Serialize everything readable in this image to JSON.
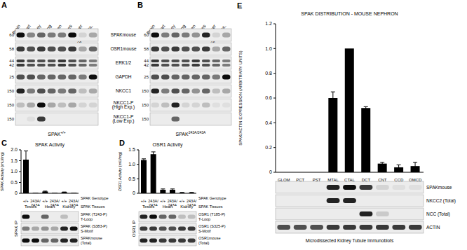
{
  "blots": {
    "row_labels": [
      [
        "SPAKmouse"
      ],
      [
        "OSR1mouse"
      ],
      [
        "ERK1/2"
      ],
      [
        "GAPDH"
      ],
      [
        "NKCC1"
      ],
      [
        "NKCC1-P",
        "(High Exp.)"
      ],
      [
        "NKCC1-P",
        "(Low Exp.)"
      ]
    ],
    "panels": [
      {
        "letter": "A",
        "genotype": {
          "text": "SPAK",
          "sup": "+/+"
        },
        "lanes": [
          "Brain",
          "Heart",
          "Kidney",
          "Lung",
          "Spleen",
          "Testes",
          "Liver",
          "Skel. Musc."
        ],
        "rows": [
          {
            "mw": [
              60
            ],
            "intensity": [
              1,
              0.45,
              0.6,
              0.5,
              0.5,
              1,
              0.1,
              0.3
            ]
          },
          {
            "mw": [
              58
            ],
            "intensity": [
              0.8,
              0.7,
              0.8,
              0.7,
              0.7,
              0.8,
              0.3,
              0.6
            ]
          },
          {
            "mw": [
              44,
              42
            ],
            "intensity": [
              0.8,
              0.7,
              0.7,
              0.7,
              0.8,
              0.7,
              0.6,
              0.5
            ]
          },
          {
            "mw": [
              25
            ],
            "intensity": [
              0.7,
              0.7,
              0.6,
              0.6,
              0.6,
              0.6,
              0.5,
              1
            ]
          },
          {
            "mw": [
              150
            ],
            "intensity": [
              0.9,
              0.5,
              0.7,
              0.6,
              0.5,
              0.6,
              0.2,
              0.3
            ]
          },
          {
            "mw": [
              150
            ],
            "intensity": [
              0.2,
              0.3,
              1,
              0.3,
              0.2,
              0.3,
              0.1,
              0.1
            ]
          },
          {
            "mw": [
              150
            ],
            "intensity": [
              0,
              0.05,
              0.8,
              0,
              0,
              0,
              0,
              0
            ]
          }
        ]
      },
      {
        "letter": "B",
        "genotype": {
          "text": "SPAK",
          "sup": "243A/243A"
        },
        "lanes": [
          "Brain",
          "Heart",
          "Kidney",
          "Lung",
          "Spleen",
          "Testes",
          "Liver",
          "Skel. Musc."
        ],
        "rows": [
          {
            "mw": [
              60
            ],
            "intensity": [
              1,
              0.5,
              0.6,
              0.5,
              0.4,
              0.9,
              0.1,
              0.3
            ]
          },
          {
            "mw": [
              58
            ],
            "intensity": [
              0.8,
              0.7,
              0.8,
              0.7,
              0.7,
              0.8,
              0.3,
              0.6
            ]
          },
          {
            "mw": [
              44,
              42
            ],
            "intensity": [
              0.8,
              0.7,
              0.7,
              0.7,
              0.8,
              0.7,
              0.6,
              0.5
            ]
          },
          {
            "mw": [
              25
            ],
            "intensity": [
              0.7,
              0.7,
              0.6,
              0.6,
              0.6,
              0.6,
              0.5,
              1
            ]
          },
          {
            "mw": [
              150
            ],
            "intensity": [
              0.9,
              0.5,
              0.7,
              0.6,
              0.4,
              0.6,
              0.2,
              0.3
            ]
          },
          {
            "mw": [
              150
            ],
            "intensity": [
              0.1,
              0.2,
              0.9,
              0.1,
              0.1,
              0.2,
              0.05,
              0.05
            ]
          },
          {
            "mw": [
              150
            ],
            "intensity": [
              0,
              0,
              0.6,
              0,
              0,
              0,
              0,
              0
            ]
          }
        ]
      }
    ]
  },
  "chart_data": [
    {
      "letter": "C",
      "type": "bar",
      "title": "SPAK Activity",
      "y_label": "SPAK Activity (mU/mg)",
      "categories": [
        "+/+",
        "243A/243A",
        "+/+",
        "243A/243A",
        "+/+",
        "243A/243A"
      ],
      "category_label": "SPAK Genotype",
      "groups": [
        "Testes",
        "Heart",
        "Kidney"
      ],
      "group_label": "SPAK Tissues",
      "values": [
        1.55,
        0.02,
        0.08,
        0.02,
        0.05,
        0.02
      ],
      "errors": [
        0.4,
        0,
        0.02,
        0,
        0.01,
        0
      ],
      "color": "#000000",
      "ylim": [
        0,
        2
      ],
      "yticks": [
        0,
        0.5,
        {
          "value": 1,
          "label": "1.0"
        },
        1.5,
        {
          "value": 2,
          "label": "2.0"
        }
      ],
      "grid": false,
      "blot": {
        "side_label": "SPAK IP",
        "rows": [
          {
            "label": [
              "SPAK (T243-P)",
              "T-Loop"
            ],
            "intensity": [
              1,
              0,
              0.6,
              0,
              0.2,
              0
            ]
          },
          {
            "label": [
              "SPAK (S383-P)",
              "S-Motif"
            ],
            "intensity": [
              0.5,
              0.3,
              0.4,
              0.3,
              0.9,
              1
            ]
          },
          {
            "label": [
              "SPAKmouse",
              "(Total)"
            ],
            "intensity": [
              1,
              1,
              0.6,
              0.6,
              0.9,
              0.9
            ]
          }
        ]
      }
    },
    {
      "letter": "D",
      "type": "bar",
      "title": "OSR1 Activity",
      "y_label": "OSR1 Activity (mU/mg)",
      "categories": [
        "+/+",
        "243A/243A",
        "+/+",
        "243A/243A",
        "+/+",
        "243A/243A"
      ],
      "category_label": "SPAK Genotype",
      "groups": [
        "Testes",
        "Heart",
        "Kidney"
      ],
      "group_label": "SPAK Tissues",
      "values": [
        1.15,
        1.35,
        0.12,
        0.12,
        0.02,
        0.02
      ],
      "errors": [
        0.04,
        0.08,
        0.03,
        0.03,
        0.01,
        0.01
      ],
      "color": "#000000",
      "ylim": [
        0,
        1.5
      ],
      "yticks": [
        0,
        0.5,
        {
          "value": 1,
          "label": "1.0"
        },
        1.5
      ],
      "grid": false,
      "blot": {
        "side_label": "OSR1 IP",
        "rows": [
          {
            "label": [
              "OSR1 (T185-P)",
              "T-Loop"
            ],
            "intensity": [
              0.9,
              1,
              0.6,
              0.6,
              0.2,
              0.2
            ]
          },
          {
            "label": [
              "OSR1 (S325-P)",
              "S-Motif"
            ],
            "intensity": [
              0.8,
              0.8,
              0.7,
              0.7,
              0.8,
              0.8
            ]
          },
          {
            "label": [
              "OSR1mouse",
              "(Total)"
            ],
            "intensity": [
              0.9,
              0.9,
              0.8,
              0.8,
              0.8,
              0.8
            ]
          }
        ]
      }
    },
    {
      "letter": "E",
      "type": "bar",
      "title": "SPAK DISTRIBUTION - MOUSE NEPHRON",
      "y_label": "SPAK/ACTIN EXPRESSION (ARBITRARY UNITS)",
      "categories": [
        "GLOM",
        "PCT",
        "PST",
        "MTAL",
        "CTAL",
        "DCT",
        "CNT",
        "CCD",
        "OMCD"
      ],
      "values": [
        0,
        0,
        0,
        0.6,
        1,
        0.52,
        0.07,
        0.04,
        0.05
      ],
      "errors": [
        0,
        0,
        0,
        0.05,
        0,
        0.01,
        0.01,
        0.02,
        0.03
      ],
      "color": "#000000",
      "ylim": [
        0,
        1.2
      ],
      "yticks": [
        0,
        0.2,
        0.4,
        0.6,
        0.8,
        {
          "value": 1,
          "label": "1.0"
        },
        1.2
      ],
      "grid": false,
      "blot": {
        "rows": [
          {
            "label": [
              "SPAKmouse"
            ],
            "intensity": [
              0,
              0,
              0,
              0.9,
              1,
              0.8,
              0.1,
              0.05,
              0.05
            ]
          },
          {
            "label": [
              "NKCC2 (Total)"
            ],
            "intensity": [
              0,
              0,
              0,
              0.9,
              0.9,
              0,
              0,
              0,
              0
            ]
          },
          {
            "label": [
              "NCC (Total)"
            ],
            "intensity": [
              0,
              0,
              0,
              0,
              0,
              0.9,
              0.15,
              0,
              0
            ]
          },
          {
            "label": [
              "ACTIN"
            ],
            "intensity": [
              0.7,
              0.7,
              0.7,
              0.8,
              0.8,
              0.8,
              0.8,
              0.8,
              0.8
            ]
          }
        ]
      },
      "footer": "Microdissected Kidney Tubule Immunoblots"
    }
  ]
}
